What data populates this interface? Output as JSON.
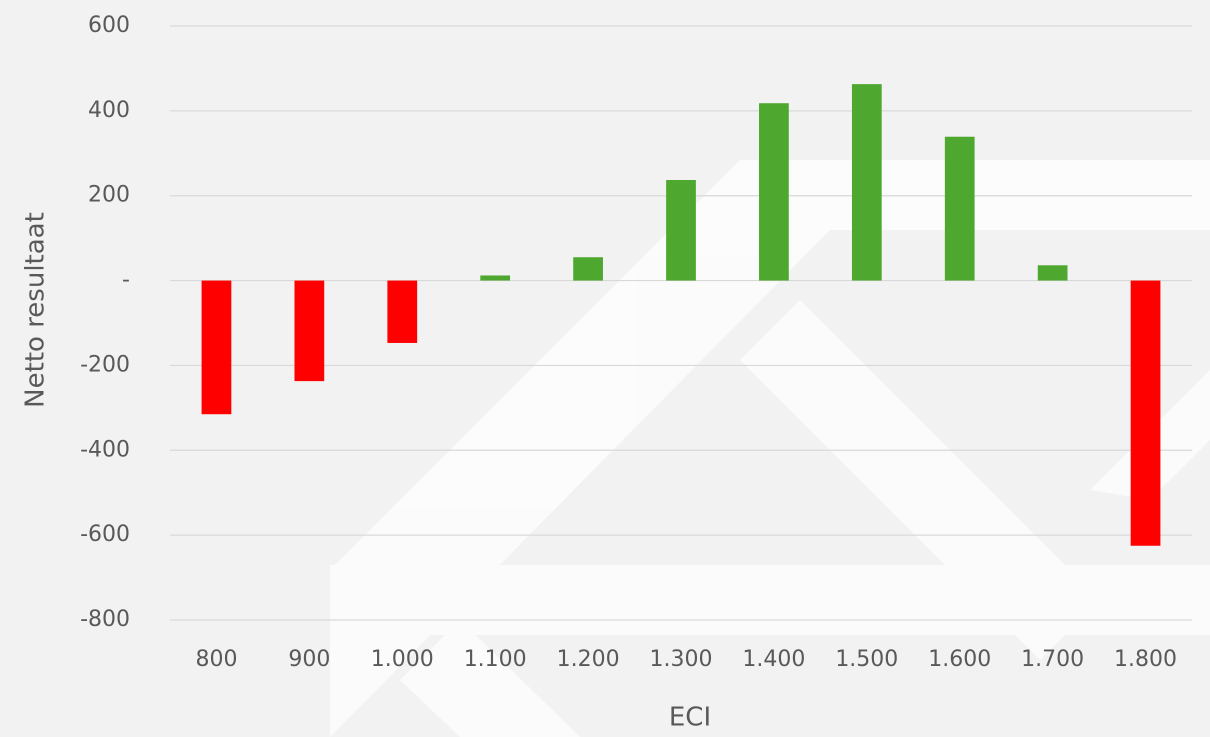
{
  "chart_data": {
    "type": "bar",
    "categories": [
      "800",
      "900",
      "1.000",
      "1.100",
      "1.200",
      "1.300",
      "1.400",
      "1.500",
      "1.600",
      "1.700",
      "1.800"
    ],
    "values": [
      -315,
      -237,
      -147,
      12,
      55,
      237,
      418,
      463,
      339,
      36,
      -625
    ],
    "colors": [
      "#ff0000",
      "#ff0000",
      "#ff0000",
      "#4ea72e",
      "#4ea72e",
      "#4ea72e",
      "#4ea72e",
      "#4ea72e",
      "#4ea72e",
      "#4ea72e",
      "#ff0000"
    ],
    "x_label": "ECI",
    "y_label": "Netto resultaat",
    "ylim": [
      -800,
      600
    ],
    "yticks": [
      -800,
      -600,
      -400,
      -200,
      {
        "value": 0,
        "label": "-"
      },
      200,
      400,
      600
    ],
    "grid": true
  }
}
